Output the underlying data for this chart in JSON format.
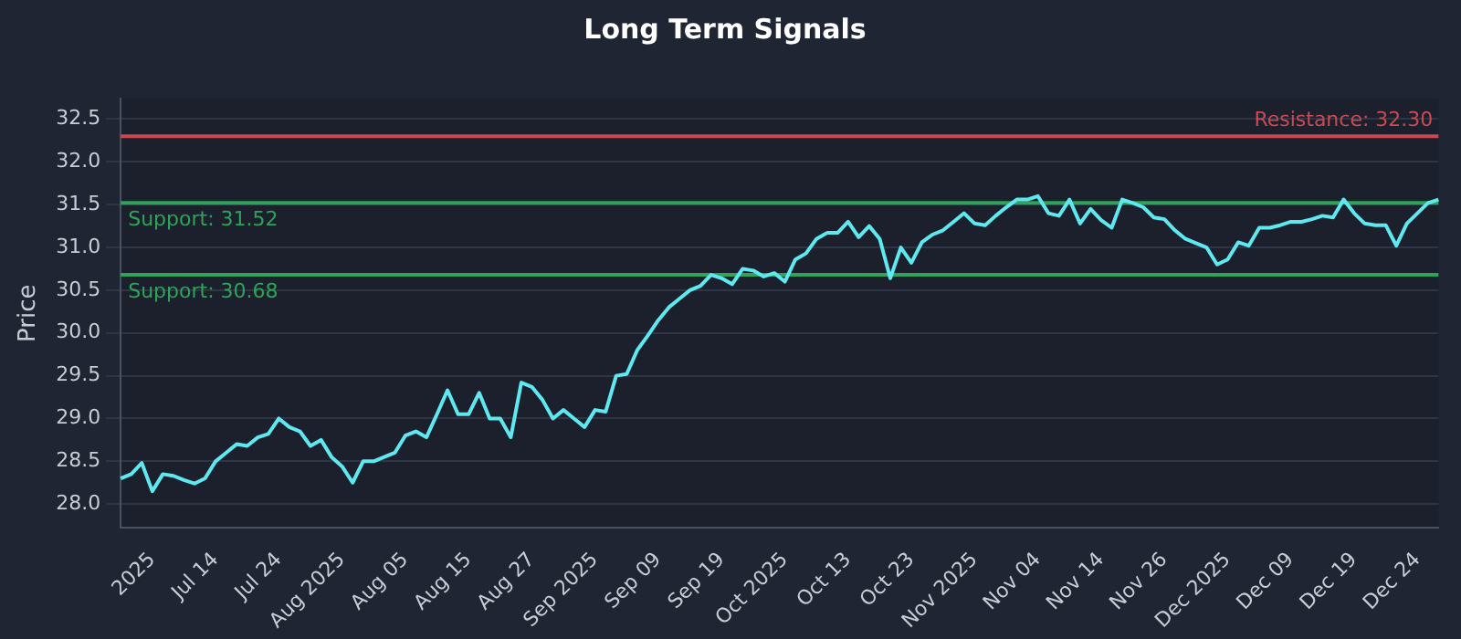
{
  "chart_data": {
    "type": "line",
    "title": "Long Term Signals",
    "ylabel": "Price",
    "categories": [
      null,
      null,
      null,
      "2025",
      null,
      null,
      null,
      null,
      null,
      "Jul 14",
      null,
      null,
      null,
      null,
      null,
      "Jul 24",
      null,
      null,
      null,
      null,
      null,
      "Aug 2025",
      null,
      null,
      null,
      null,
      null,
      "Aug 05",
      null,
      null,
      null,
      null,
      null,
      "Aug 15",
      null,
      null,
      null,
      null,
      null,
      "Aug 27",
      null,
      null,
      null,
      null,
      null,
      "Sep 2025",
      null,
      null,
      null,
      null,
      null,
      "Sep 09",
      null,
      null,
      null,
      null,
      null,
      "Sep 19",
      null,
      null,
      null,
      null,
      null,
      "Oct 2025",
      null,
      null,
      null,
      null,
      null,
      "Oct 13",
      null,
      null,
      null,
      null,
      null,
      "Oct 23",
      null,
      null,
      null,
      null,
      null,
      "Nov 2025",
      null,
      null,
      null,
      null,
      null,
      "Nov 04",
      null,
      null,
      null,
      null,
      null,
      "Nov 14",
      null,
      null,
      null,
      null,
      null,
      "Nov 26",
      null,
      null,
      null,
      null,
      null,
      "Dec 2025",
      null,
      null,
      null,
      null,
      null,
      "Dec 09",
      null,
      null,
      null,
      null,
      null,
      "Dec 19",
      null,
      null,
      null,
      null,
      null,
      "Dec 24",
      null,
      null
    ],
    "series": [
      {
        "color": "#5ee8f0",
        "values": [
          28.3,
          28.35,
          28.48,
          28.15,
          28.35,
          28.33,
          28.28,
          28.24,
          28.3,
          28.5,
          28.6,
          28.7,
          28.68,
          28.78,
          28.82,
          29.0,
          28.9,
          28.85,
          28.68,
          28.75,
          28.55,
          28.44,
          28.25,
          28.5,
          28.5,
          28.55,
          28.6,
          28.8,
          28.85,
          28.78,
          29.05,
          29.33,
          29.05,
          29.05,
          29.3,
          29.0,
          29.0,
          28.78,
          29.42,
          29.37,
          29.22,
          29.0,
          29.1,
          29.0,
          28.9,
          29.1,
          29.08,
          29.5,
          29.52,
          29.8,
          29.97,
          30.15,
          30.3,
          30.4,
          30.5,
          30.55,
          30.68,
          30.64,
          30.57,
          30.75,
          30.73,
          30.66,
          30.7,
          30.6,
          30.86,
          30.93,
          31.1,
          31.17,
          31.17,
          31.3,
          31.12,
          31.25,
          31.1,
          30.64,
          31.0,
          30.82,
          31.06,
          31.15,
          31.2,
          31.3,
          31.4,
          31.28,
          31.26,
          31.37,
          31.47,
          31.56,
          31.56,
          31.6,
          31.4,
          31.37,
          31.56,
          31.28,
          31.45,
          31.32,
          31.23,
          31.56,
          31.52,
          31.47,
          31.35,
          31.33,
          31.2,
          31.1,
          31.05,
          31.0,
          30.8,
          30.86,
          31.06,
          31.02,
          31.23,
          31.23,
          31.26,
          31.3,
          31.3,
          31.33,
          31.37,
          31.35,
          31.56,
          31.4,
          31.28,
          31.26,
          31.26,
          31.02,
          31.28,
          31.4,
          31.52,
          31.56
        ]
      }
    ],
    "ylim": [
      27.72,
      32.74
    ],
    "yticks": [
      {
        "value": 28,
        "label": "28.0"
      },
      28.5,
      {
        "value": 29,
        "label": "29.0"
      },
      29.5,
      {
        "value": 30,
        "label": "30.0"
      },
      30.5,
      {
        "value": 31,
        "label": "31.0"
      },
      31.5,
      {
        "value": 32,
        "label": "32.0"
      },
      32.5
    ],
    "ref_lines": [
      {
        "axis": "y",
        "value": 32.3,
        "label": "Resistance: 32.30",
        "color": "#c94a52"
      },
      {
        "axis": "y",
        "value": 31.52,
        "label": "Support: 31.52",
        "color": "#2fa35a"
      },
      {
        "axis": "y",
        "value": 30.68,
        "label": "Support: 30.68",
        "color": "#2fa35a"
      }
    ],
    "grid": "y",
    "legend": false,
    "line_style": "solid",
    "marker": "none"
  }
}
